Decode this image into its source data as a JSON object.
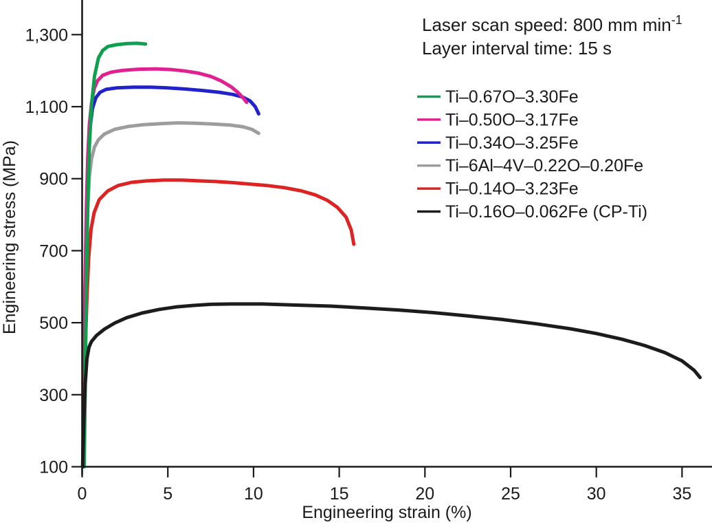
{
  "annotation": {
    "line1_main": "Laser scan speed: 800 mm min",
    "line1_sup": "-1",
    "line2": "Layer interval time: 15 s"
  },
  "axes": {
    "x": {
      "label": "Engineering strain (%)",
      "tick_values": [
        0,
        5,
        10,
        15,
        20,
        25,
        30,
        35
      ],
      "tick_labels": [
        "0",
        "5",
        "10",
        "15",
        "20",
        "25",
        "30",
        "35"
      ]
    },
    "y": {
      "label": "Engineering stress (MPa)",
      "tick_values": [
        100,
        300,
        500,
        700,
        900,
        1100,
        1300
      ],
      "tick_labels": [
        "100",
        "300",
        "500",
        "700",
        "900",
        "1,100",
        "1,300"
      ]
    }
  },
  "colors": {
    "axis": "#1a1a1a",
    "text": "#1a1a1a",
    "background": "#ffffff"
  },
  "chart_data": {
    "type": "line",
    "title": "",
    "xlabel": "Engineering strain (%)",
    "ylabel": "Engineering stress (MPa)",
    "xlim": [
      0,
      36.8
    ],
    "ylim": [
      100,
      1420
    ],
    "grid": false,
    "legend_position": "top-right",
    "series": [
      {
        "name": "Ti–0.67O–3.30Fe",
        "color": "#0fa04f",
        "points": [
          [
            0.12,
            100
          ],
          [
            0.18,
            330
          ],
          [
            0.25,
            600
          ],
          [
            0.33,
            830
          ],
          [
            0.42,
            990
          ],
          [
            0.55,
            1105
          ],
          [
            0.72,
            1185
          ],
          [
            0.95,
            1235
          ],
          [
            1.2,
            1256
          ],
          [
            1.5,
            1267
          ],
          [
            2.0,
            1272
          ],
          [
            2.6,
            1275
          ],
          [
            3.2,
            1276
          ],
          [
            3.7,
            1274
          ]
        ]
      },
      {
        "name": "Ti–0.50O–3.17Fe",
        "color": "#e0218f",
        "points": [
          [
            0.04,
            100
          ],
          [
            0.1,
            350
          ],
          [
            0.17,
            600
          ],
          [
            0.25,
            820
          ],
          [
            0.33,
            960
          ],
          [
            0.42,
            1050
          ],
          [
            0.55,
            1110
          ],
          [
            0.7,
            1150
          ],
          [
            0.9,
            1172
          ],
          [
            1.2,
            1187
          ],
          [
            1.7,
            1196
          ],
          [
            2.4,
            1201
          ],
          [
            3.3,
            1204
          ],
          [
            4.3,
            1205
          ],
          [
            5.2,
            1203
          ],
          [
            6.0,
            1199
          ],
          [
            6.8,
            1193
          ],
          [
            7.5,
            1184
          ],
          [
            8.1,
            1172
          ],
          [
            8.7,
            1155
          ],
          [
            9.1,
            1139
          ],
          [
            9.4,
            1124
          ],
          [
            9.6,
            1112
          ]
        ]
      },
      {
        "name": "Ti–0.34O–3.25Fe",
        "color": "#2222cb",
        "points": [
          [
            0.04,
            100
          ],
          [
            0.1,
            350
          ],
          [
            0.18,
            620
          ],
          [
            0.26,
            820
          ],
          [
            0.35,
            950
          ],
          [
            0.46,
            1040
          ],
          [
            0.6,
            1095
          ],
          [
            0.8,
            1125
          ],
          [
            1.05,
            1140
          ],
          [
            1.4,
            1148
          ],
          [
            2.0,
            1152
          ],
          [
            3.0,
            1154
          ],
          [
            4.0,
            1154
          ],
          [
            5.0,
            1152
          ],
          [
            6.0,
            1149
          ],
          [
            7.0,
            1145
          ],
          [
            8.0,
            1140
          ],
          [
            8.8,
            1134
          ],
          [
            9.4,
            1126
          ],
          [
            9.8,
            1116
          ],
          [
            10.1,
            1100
          ],
          [
            10.3,
            1080
          ]
        ]
      },
      {
        "name": "Ti–6Al–4V–0.22O–0.20Fe",
        "color": "#9d9d9d",
        "points": [
          [
            0.04,
            100
          ],
          [
            0.12,
            350
          ],
          [
            0.22,
            620
          ],
          [
            0.32,
            810
          ],
          [
            0.42,
            905
          ],
          [
            0.55,
            955
          ],
          [
            0.72,
            988
          ],
          [
            0.95,
            1008
          ],
          [
            1.3,
            1024
          ],
          [
            1.9,
            1037
          ],
          [
            2.7,
            1045
          ],
          [
            3.6,
            1050
          ],
          [
            4.6,
            1053
          ],
          [
            5.6,
            1055
          ],
          [
            6.6,
            1054
          ],
          [
            7.6,
            1052
          ],
          [
            8.6,
            1049
          ],
          [
            9.4,
            1044
          ],
          [
            9.9,
            1037
          ],
          [
            10.3,
            1026
          ]
        ]
      },
      {
        "name": "Ti–0.14O–3.23Fe",
        "color": "#dd2424",
        "points": [
          [
            0.04,
            100
          ],
          [
            0.1,
            260
          ],
          [
            0.18,
            420
          ],
          [
            0.28,
            570
          ],
          [
            0.38,
            680
          ],
          [
            0.52,
            760
          ],
          [
            0.7,
            806
          ],
          [
            1.0,
            842
          ],
          [
            1.5,
            866
          ],
          [
            2.1,
            881
          ],
          [
            2.9,
            890
          ],
          [
            3.8,
            894
          ],
          [
            4.8,
            896
          ],
          [
            5.8,
            896
          ],
          [
            6.8,
            894
          ],
          [
            7.8,
            892
          ],
          [
            8.8,
            889
          ],
          [
            9.8,
            885
          ],
          [
            10.8,
            881
          ],
          [
            11.8,
            875
          ],
          [
            12.8,
            866
          ],
          [
            13.6,
            855
          ],
          [
            14.3,
            840
          ],
          [
            14.9,
            820
          ],
          [
            15.4,
            793
          ],
          [
            15.7,
            757
          ],
          [
            15.85,
            718
          ]
        ]
      },
      {
        "name": "Ti–0.16O–0.062Fe (CP-Ti)",
        "color": "#1c1c1c",
        "points": [
          [
            0.03,
            100
          ],
          [
            0.1,
            230
          ],
          [
            0.18,
            330
          ],
          [
            0.28,
            400
          ],
          [
            0.4,
            432
          ],
          [
            0.55,
            448
          ],
          [
            0.85,
            465
          ],
          [
            1.3,
            482
          ],
          [
            1.9,
            499
          ],
          [
            2.6,
            514
          ],
          [
            3.5,
            527
          ],
          [
            4.5,
            537
          ],
          [
            5.5,
            544
          ],
          [
            6.5,
            548
          ],
          [
            7.5,
            551
          ],
          [
            8.7,
            552
          ],
          [
            10.5,
            552
          ],
          [
            12.5,
            549
          ],
          [
            14.5,
            546
          ],
          [
            16.5,
            541
          ],
          [
            18.5,
            535
          ],
          [
            20.5,
            528
          ],
          [
            22.5,
            519
          ],
          [
            24.5,
            509
          ],
          [
            26.5,
            497
          ],
          [
            28.5,
            483
          ],
          [
            30.0,
            470
          ],
          [
            31.5,
            454
          ],
          [
            32.8,
            437
          ],
          [
            34.0,
            417
          ],
          [
            35.0,
            394
          ],
          [
            35.7,
            368
          ],
          [
            36.05,
            348
          ]
        ]
      }
    ]
  }
}
